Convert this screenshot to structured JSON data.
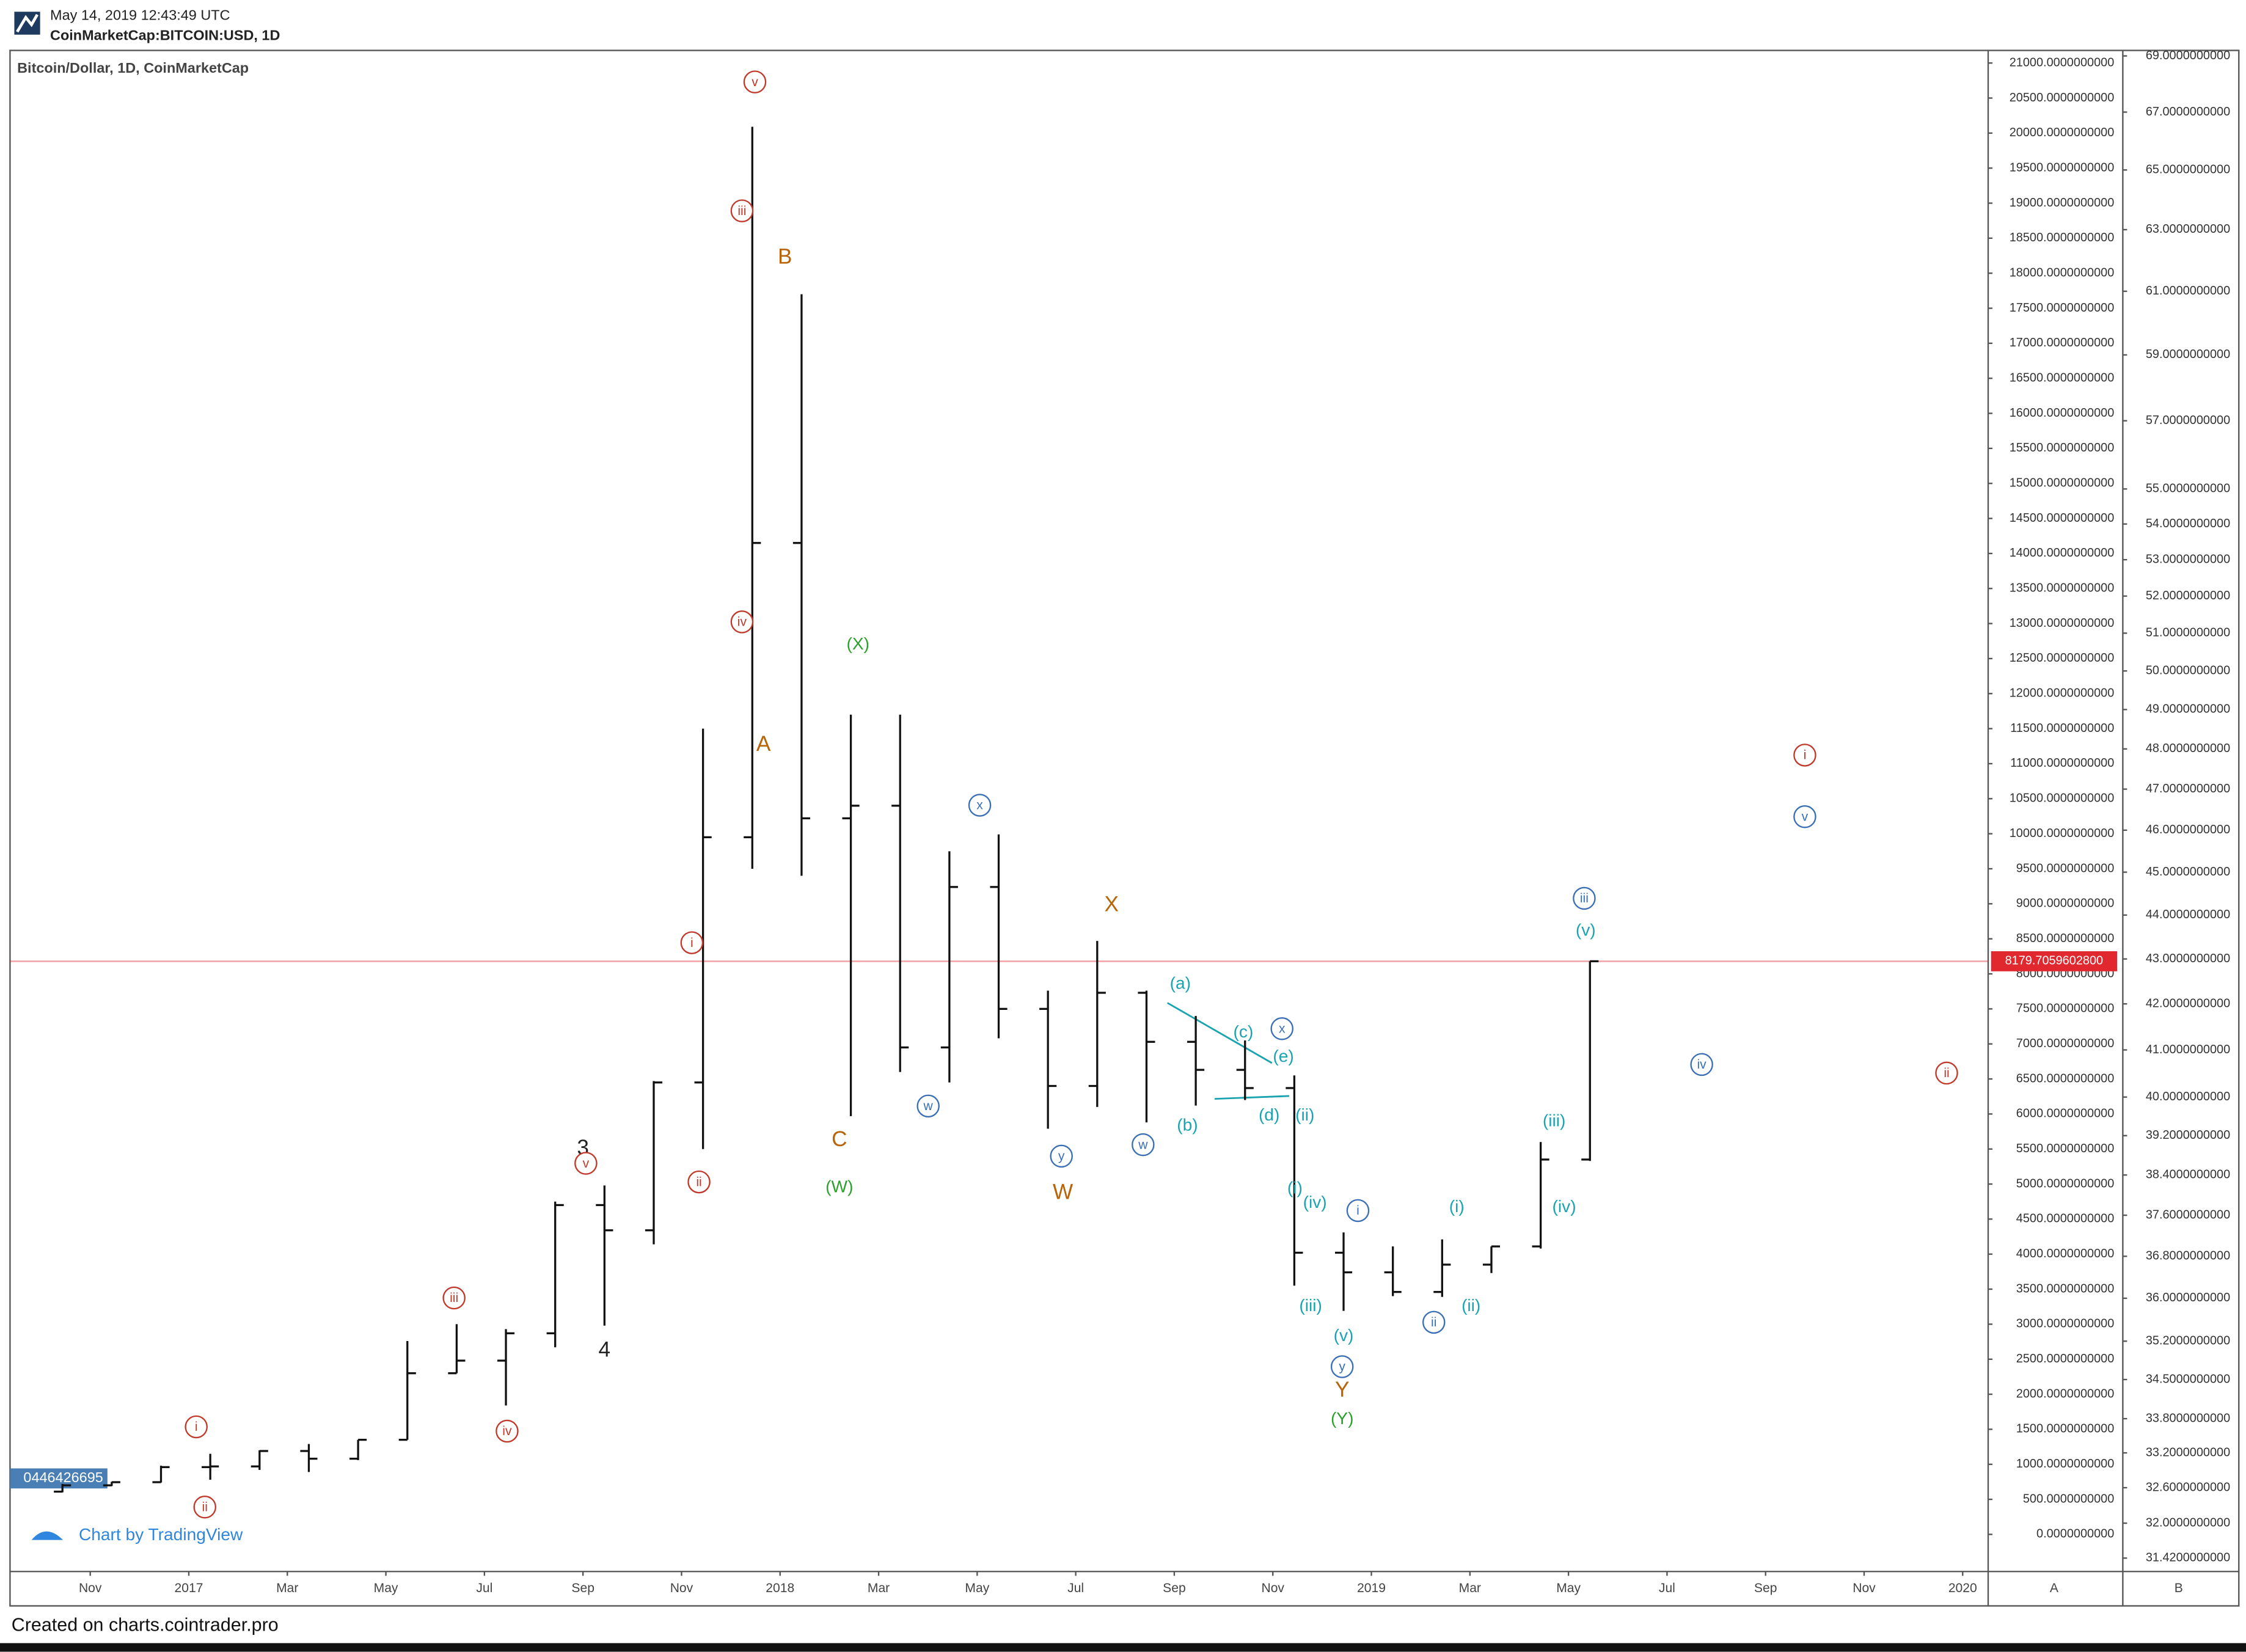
{
  "header": {
    "timestamp": "May 14, 2019 12:43:49 UTC",
    "symbol": "CoinMarketCap:BITCOIN:USD, 1D"
  },
  "chart_data": {
    "type": "ohlc",
    "title": "Bitcoin/Dollar, 1D, CoinMarketCap",
    "x": [
      "2016-10",
      "2016-11",
      "2016-12",
      "2017-01",
      "2017-02",
      "2017-03",
      "2017-04",
      "2017-05",
      "2017-06",
      "2017-07",
      "2017-08",
      "2017-09",
      "2017-10",
      "2017-11",
      "2017-12",
      "2018-01",
      "2018-02",
      "2018-03",
      "2018-04",
      "2018-05",
      "2018-06",
      "2018-07",
      "2018-08",
      "2018-09",
      "2018-10",
      "2018-11",
      "2018-12",
      "2019-01",
      "2019-02",
      "2019-03",
      "2019-04",
      "2019-05"
    ],
    "open": [
      610,
      700,
      745,
      960,
      970,
      1190,
      1080,
      1350,
      2300,
      2480,
      2870,
      4700,
      4340,
      6450,
      9950,
      14150,
      10220,
      10400,
      6950,
      9240,
      7500,
      6400,
      7730,
      7030,
      6630,
      6370,
      4020,
      3740,
      3460,
      3850,
      4110,
      5350
    ],
    "high": [
      720,
      750,
      980,
      1150,
      1200,
      1290,
      1350,
      2760,
      3000,
      2930,
      4750,
      4980,
      6470,
      11500,
      20090,
      17700,
      11700,
      11700,
      9750,
      9990,
      7760,
      8470,
      7760,
      7400,
      7050,
      6550,
      4310,
      4110,
      4210,
      4110,
      5600,
      8180
    ],
    "low": [
      600,
      690,
      740,
      780,
      920,
      890,
      1060,
      1350,
      2300,
      1840,
      2670,
      2980,
      4140,
      5500,
      9500,
      9400,
      5970,
      6600,
      6450,
      7080,
      5790,
      6100,
      5880,
      6120,
      6200,
      3550,
      3190,
      3400,
      3390,
      3730,
      4080,
      5330
    ],
    "close": [
      700,
      745,
      960,
      970,
      1190,
      1080,
      1350,
      2300,
      2480,
      2870,
      4700,
      4340,
      6450,
      9950,
      14150,
      10220,
      10400,
      6950,
      9240,
      7500,
      6400,
      7730,
      7030,
      6630,
      6370,
      4020,
      3740,
      3460,
      3850,
      4110,
      5350,
      8180
    ],
    "color": "#111111",
    "xticks": [
      {
        "value": "2016-11",
        "label": "Nov"
      },
      {
        "value": "2017-01",
        "label": "2017"
      },
      {
        "value": "2017-03",
        "label": "Mar"
      },
      {
        "value": "2017-05",
        "label": "May"
      },
      {
        "value": "2017-07",
        "label": "Jul"
      },
      {
        "value": "2017-09",
        "label": "Sep"
      },
      {
        "value": "2017-11",
        "label": "Nov"
      },
      {
        "value": "2018-01",
        "label": "2018"
      },
      {
        "value": "2018-03",
        "label": "Mar"
      },
      {
        "value": "2018-05",
        "label": "May"
      },
      {
        "value": "2018-07",
        "label": "Jul"
      },
      {
        "value": "2018-09",
        "label": "Sep"
      },
      {
        "value": "2018-11",
        "label": "Nov"
      },
      {
        "value": "2019-01",
        "label": "2019"
      },
      {
        "value": "2019-03",
        "label": "Mar"
      },
      {
        "value": "2019-05",
        "label": "May"
      },
      {
        "value": "2019-07",
        "label": "Jul"
      },
      {
        "value": "2019-09",
        "label": "Sep"
      },
      {
        "value": "2019-11",
        "label": "Nov"
      },
      {
        "value": "2020-01",
        "label": "2020"
      }
    ],
    "ylim": [
      -530,
      21180
    ],
    "yticks": [
      {
        "value": 0,
        "label": "0.0000000000"
      },
      {
        "value": 500,
        "label": "500.0000000000"
      },
      {
        "value": 1000,
        "label": "1000.0000000000"
      },
      {
        "value": 1500,
        "label": "1500.0000000000"
      },
      {
        "value": 2000,
        "label": "2000.0000000000"
      },
      {
        "value": 2500,
        "label": "2500.0000000000"
      },
      {
        "value": 3000,
        "label": "3000.0000000000"
      },
      {
        "value": 3500,
        "label": "3500.0000000000"
      },
      {
        "value": 4000,
        "label": "4000.0000000000"
      },
      {
        "value": 4500,
        "label": "4500.0000000000"
      },
      {
        "value": 5000,
        "label": "5000.0000000000"
      },
      {
        "value": 5500,
        "label": "5500.0000000000"
      },
      {
        "value": 6000,
        "label": "6000.0000000000"
      },
      {
        "value": 6500,
        "label": "6500.0000000000"
      },
      {
        "value": 7000,
        "label": "7000.0000000000"
      },
      {
        "value": 7500,
        "label": "7500.0000000000"
      },
      {
        "value": 8000,
        "label": "8000.0000000000"
      },
      {
        "value": 8500,
        "label": "8500.0000000000"
      },
      {
        "value": 9000,
        "label": "9000.0000000000"
      },
      {
        "value": 9500,
        "label": "9500.0000000000"
      },
      {
        "value": 10000,
        "label": "10000.0000000000"
      },
      {
        "value": 10500,
        "label": "10500.0000000000"
      },
      {
        "value": 11000,
        "label": "11000.0000000000"
      },
      {
        "value": 11500,
        "label": "11500.0000000000"
      },
      {
        "value": 12000,
        "label": "12000.0000000000"
      },
      {
        "value": 12500,
        "label": "12500.0000000000"
      },
      {
        "value": 13000,
        "label": "13000.0000000000"
      },
      {
        "value": 13500,
        "label": "13500.0000000000"
      },
      {
        "value": 14000,
        "label": "14000.0000000000"
      },
      {
        "value": 14500,
        "label": "14500.0000000000"
      },
      {
        "value": 15000,
        "label": "15000.0000000000"
      },
      {
        "value": 15500,
        "label": "15500.0000000000"
      },
      {
        "value": 16000,
        "label": "16000.0000000000"
      },
      {
        "value": 16500,
        "label": "16500.0000000000"
      },
      {
        "value": 17000,
        "label": "17000.0000000000"
      },
      {
        "value": 17500,
        "label": "17500.0000000000"
      },
      {
        "value": 18000,
        "label": "18000.0000000000"
      },
      {
        "value": 18500,
        "label": "18500.0000000000"
      },
      {
        "value": 19000,
        "label": "19000.0000000000"
      },
      {
        "value": 19500,
        "label": "19500.0000000000"
      },
      {
        "value": 20000,
        "label": "20000.0000000000"
      },
      {
        "value": 20500,
        "label": "20500.0000000000"
      },
      {
        "value": 21000,
        "label": "21000.0000000000"
      }
    ],
    "y2lim": [
      31.2,
      69.2
    ],
    "y2scale": "log",
    "y2ticks": [
      {
        "value": 31.42,
        "label": "31.4200000000"
      },
      {
        "value": 32,
        "label": "32.0000000000"
      },
      {
        "value": 32.6,
        "label": "32.6000000000"
      },
      {
        "value": 33.2,
        "label": "33.2000000000"
      },
      {
        "value": 33.8,
        "label": "33.8000000000"
      },
      {
        "value": 34.5,
        "label": "34.5000000000"
      },
      {
        "value": 35.2,
        "label": "35.2000000000"
      },
      {
        "value": 36,
        "label": "36.0000000000"
      },
      {
        "value": 36.8,
        "label": "36.8000000000"
      },
      {
        "value": 37.6,
        "label": "37.6000000000"
      },
      {
        "value": 38.4,
        "label": "38.4000000000"
      },
      {
        "value": 39.2,
        "label": "39.2000000000"
      },
      {
        "value": 40,
        "label": "40.0000000000"
      },
      {
        "value": 41,
        "label": "41.0000000000"
      },
      {
        "value": 42,
        "label": "42.0000000000"
      },
      {
        "value": 43,
        "label": "43.0000000000"
      },
      {
        "value": 44,
        "label": "44.0000000000"
      },
      {
        "value": 45,
        "label": "45.0000000000"
      },
      {
        "value": 46,
        "label": "46.0000000000"
      },
      {
        "value": 47,
        "label": "47.0000000000"
      },
      {
        "value": 48,
        "label": "48.0000000000"
      },
      {
        "value": 49,
        "label": "49.0000000000"
      },
      {
        "value": 50,
        "label": "50.0000000000"
      },
      {
        "value": 51,
        "label": "51.0000000000"
      },
      {
        "value": 52,
        "label": "52.0000000000"
      },
      {
        "value": 53,
        "label": "53.0000000000"
      },
      {
        "value": 54,
        "label": "54.0000000000"
      },
      {
        "value": 55,
        "label": "55.0000000000"
      },
      {
        "value": 57,
        "label": "57.0000000000"
      },
      {
        "value": 59,
        "label": "59.0000000000"
      },
      {
        "value": 61,
        "label": "61.0000000000"
      },
      {
        "value": 63,
        "label": "63.0000000000"
      },
      {
        "value": 65,
        "label": "65.0000000000"
      },
      {
        "value": 67,
        "label": "67.0000000000"
      },
      {
        "value": 69,
        "label": "69.0000000000"
      }
    ],
    "price_line": {
      "value": 8179.70596028,
      "label": "8179.7059602800",
      "color": "#e0282e"
    },
    "left_price_label": "0446426695",
    "scale_labels": [
      "A",
      "B"
    ],
    "annotations": [
      {
        "text": "v",
        "color": "#c0392b",
        "circled": true
      },
      {
        "text": "iii",
        "color": "#c0392b",
        "circled": true
      },
      {
        "text": "B",
        "color": "#b8650a",
        "circled": false
      },
      {
        "text": "iv",
        "color": "#c0392b",
        "circled": true
      },
      {
        "text": "(X)",
        "color": "#2ca02c",
        "circled": false
      },
      {
        "text": "A",
        "color": "#b8650a",
        "circled": false
      },
      {
        "text": "x",
        "color": "#3b6fb5",
        "circled": true
      },
      {
        "text": "i",
        "color": "#c0392b",
        "circled": true
      },
      {
        "text": "X",
        "color": "#b8650a",
        "circled": false
      },
      {
        "text": "(a)",
        "color": "#1aa3b0",
        "circled": false
      },
      {
        "text": "(c)",
        "color": "#1aa3b0",
        "circled": false
      },
      {
        "text": "x",
        "color": "#3b6fb5",
        "circled": true
      },
      {
        "text": "(e)",
        "color": "#1aa3b0",
        "circled": false
      },
      {
        "text": "w",
        "color": "#3b6fb5",
        "circled": true
      },
      {
        "text": "C",
        "color": "#b8650a",
        "circled": false
      },
      {
        "text": "(d)",
        "color": "#1aa3b0",
        "circled": false
      },
      {
        "text": "(ii)",
        "color": "#1aa3b0",
        "circled": false
      },
      {
        "text": "(b)",
        "color": "#1aa3b0",
        "circled": false
      },
      {
        "text": "3",
        "color": "#222222",
        "circled": false
      },
      {
        "text": "v",
        "color": "#c0392b",
        "circled": true
      },
      {
        "text": "y",
        "color": "#3b6fb5",
        "circled": true
      },
      {
        "text": "w",
        "color": "#3b6fb5",
        "circled": true
      },
      {
        "text": "ii",
        "color": "#c0392b",
        "circled": true
      },
      {
        "text": "(W)",
        "color": "#2ca02c",
        "circled": false
      },
      {
        "text": "W",
        "color": "#b8650a",
        "circled": false
      },
      {
        "text": "(i)",
        "color": "#1aa3b0",
        "circled": false
      },
      {
        "text": "(iv)",
        "color": "#1aa3b0",
        "circled": false
      },
      {
        "text": "i",
        "color": "#3b6fb5",
        "circled": true
      },
      {
        "text": "(i)",
        "color": "#1aa3b0",
        "circled": false
      },
      {
        "text": "(iv)",
        "color": "#1aa3b0",
        "circled": false
      },
      {
        "text": "(iii)",
        "color": "#1aa3b0",
        "circled": false
      },
      {
        "text": "iii",
        "color": "#3b6fb5",
        "circled": true
      },
      {
        "text": "(v)",
        "color": "#1aa3b0",
        "circled": false
      },
      {
        "text": "i",
        "color": "#c0392b",
        "circled": true
      },
      {
        "text": "v",
        "color": "#3b6fb5",
        "circled": true
      },
      {
        "text": "iv",
        "color": "#3b6fb5",
        "circled": true
      },
      {
        "text": "ii",
        "color": "#c0392b",
        "circled": true
      },
      {
        "text": "iii",
        "color": "#c0392b",
        "circled": true
      },
      {
        "text": "(iii)",
        "color": "#1aa3b0",
        "circled": false
      },
      {
        "text": "(ii)",
        "color": "#1aa3b0",
        "circled": false
      },
      {
        "text": "ii",
        "color": "#3b6fb5",
        "circled": true
      },
      {
        "text": "(v)",
        "color": "#1aa3b0",
        "circled": false
      },
      {
        "text": "4",
        "color": "#222222",
        "circled": false
      },
      {
        "text": "y",
        "color": "#3b6fb5",
        "circled": true
      },
      {
        "text": "Y",
        "color": "#b8650a",
        "circled": false
      },
      {
        "text": "(Y)",
        "color": "#2ca02c",
        "circled": false
      },
      {
        "text": "iv",
        "color": "#c0392b",
        "circled": true
      },
      {
        "text": "i",
        "color": "#c0392b",
        "circled": true
      },
      {
        "text": "ii",
        "color": "#c0392b",
        "circled": true
      }
    ]
  },
  "branding": "Chart by TradingView",
  "footer": "Created on charts.cointrader.pro"
}
